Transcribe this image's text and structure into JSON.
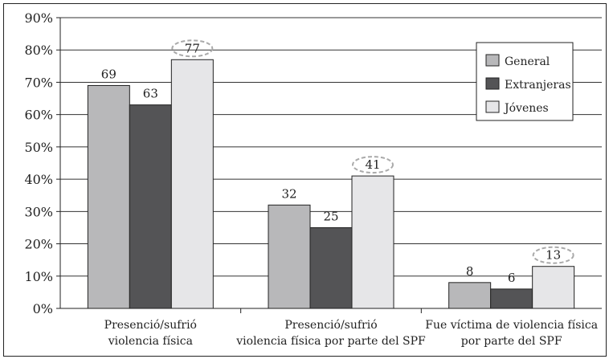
{
  "chart_data": {
    "type": "bar",
    "categories": [
      [
        "Presenció/sufrió",
        "violencia física"
      ],
      [
        "Presenció/sufrió",
        "violencia física por parte del SPF"
      ],
      [
        "Fue víctima de violencia física",
        "por parte del SPF"
      ]
    ],
    "series": [
      {
        "name": "General",
        "color": "#b8b8ba",
        "values": [
          69,
          32,
          8
        ]
      },
      {
        "name": "Extranjeras",
        "color": "#545456",
        "values": [
          63,
          25,
          6
        ]
      },
      {
        "name": "Jóvenes",
        "color": "#e6e6e8",
        "values": [
          77,
          41,
          13
        ]
      }
    ],
    "data_labels": [
      [
        "69",
        "32",
        "8"
      ],
      [
        "63",
        "25",
        "6"
      ],
      [
        "77",
        "41",
        "13"
      ]
    ],
    "highlighted_series": "Jóvenes",
    "yticks": [
      "0%",
      "10%",
      "20%",
      "30%",
      "40%",
      "50%",
      "60%",
      "70%",
      "80%",
      "90%"
    ],
    "ylim": [
      0,
      90
    ],
    "grid": true,
    "legend_position": "top-right"
  }
}
